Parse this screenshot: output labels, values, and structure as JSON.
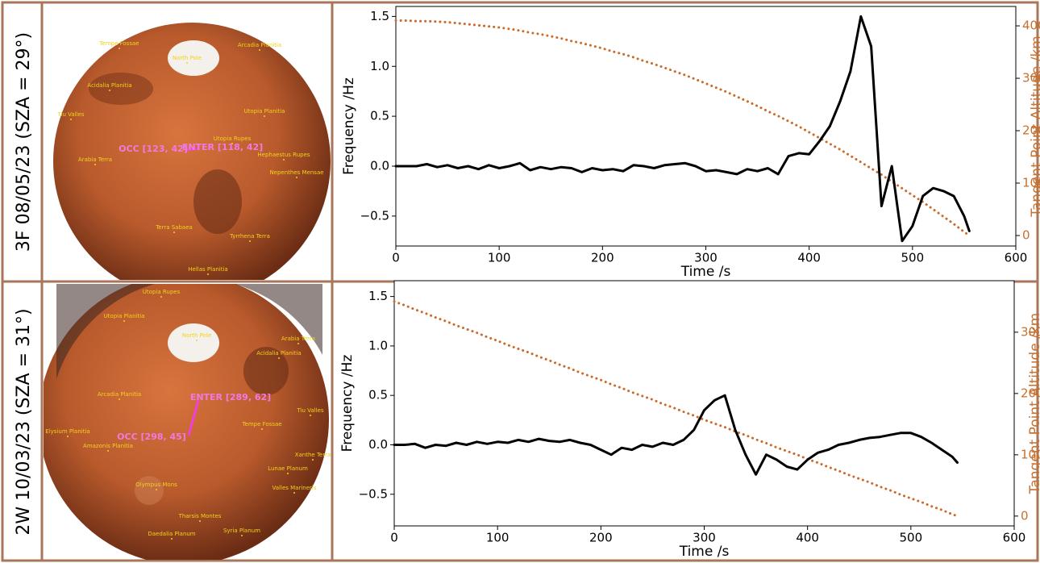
{
  "rows": [
    {
      "label": "3F 08/05/23 (SZA = 29°)",
      "features": [
        "Tempe Fossae",
        "Arcadia Planitia",
        "North Pole",
        "Acidalia Planitia",
        "Utopia Planitia",
        "Tiu Valles",
        "Utopia Rupes",
        "Hephaestus Rupes",
        "Arabia Terra",
        "Nepenthes Mensae",
        "Terra Sabaea",
        "Tyrrhena Terra",
        "Hellas Planitia"
      ],
      "occ": "OCC [123, 42]",
      "enter": "ENTER [118, 42]"
    },
    {
      "label": "2W 10/03/23 (SZA = 31°)",
      "features": [
        "Utopia Rupes",
        "Utopia Planitia",
        "North Pole",
        "Arabia Terra",
        "Acidalia Planitia",
        "Arcadia Planitia",
        "Elysium Planitia",
        "Tiu Valles",
        "Tempe Fossae",
        "Xanthe Terra",
        "Amazonis Planitia",
        "Lunae Planum",
        "Olympus Mons",
        "Valles Marineris",
        "Tharsis Montes",
        "Daedalia Planum",
        "Syria Planum"
      ],
      "occ": "OCC [298, 45]",
      "enter": "ENTER [289, 62]"
    }
  ],
  "chart_data": [
    {
      "type": "line",
      "xlabel": "Time /s",
      "ylabel": "Frequency /Hz",
      "y2label": "Tangent Point Altitude /km",
      "xlim": [
        0,
        600
      ],
      "xticks": [
        0,
        100,
        200,
        300,
        400,
        500,
        600
      ],
      "ylim": [
        -0.8,
        1.6
      ],
      "yticks": [
        {
          "value": -0.5,
          "label": "−0.5"
        },
        {
          "value": 0,
          "label": "0.0"
        },
        0.5,
        {
          "value": 1,
          "label": "1.0"
        },
        1.5
      ],
      "y2lim": [
        -20,
        437
      ],
      "y2ticks": [
        0,
        100,
        200,
        300,
        400
      ],
      "x": [
        0,
        10,
        20,
        30,
        40,
        50,
        60,
        70,
        80,
        90,
        100,
        110,
        120,
        130,
        140,
        150,
        160,
        170,
        180,
        190,
        200,
        210,
        220,
        230,
        240,
        250,
        260,
        270,
        280,
        290,
        300,
        310,
        320,
        330,
        340,
        350,
        360,
        370,
        380,
        390,
        400,
        410,
        420,
        430,
        440,
        450,
        460,
        470,
        480,
        490,
        500,
        510,
        520,
        530,
        540,
        550,
        555
      ],
      "series": [
        {
          "color": "#000000",
          "linestyle": "solid",
          "values": [
            0,
            0,
            0,
            0.02,
            -0.01,
            0.01,
            -0.02,
            0,
            -0.03,
            0.01,
            -0.02,
            0,
            0.03,
            -0.04,
            -0.01,
            -0.03,
            -0.01,
            -0.02,
            -0.06,
            -0.02,
            -0.04,
            -0.03,
            -0.05,
            0.01,
            0,
            -0.02,
            0.01,
            0.02,
            0.03,
            0,
            -0.05,
            -0.04,
            -0.06,
            -0.08,
            -0.03,
            -0.05,
            -0.02,
            -0.08,
            0.1,
            0.13,
            0.12,
            0.25,
            0.4,
            0.65,
            0.95,
            1.5,
            1.2,
            -0.4,
            0,
            -0.75,
            -0.6,
            -0.3,
            -0.22,
            -0.25,
            -0.3,
            -0.5,
            -0.65
          ]
        },
        {
          "color": "#cc6a2a",
          "linestyle": "dotted",
          "axis": "y2",
          "values": [
            410,
            410,
            409,
            409,
            408,
            407,
            405,
            403,
            401,
            399,
            397,
            394,
            391,
            387,
            384,
            380,
            376,
            371,
            367,
            362,
            357,
            351,
            346,
            340,
            333,
            327,
            320,
            313,
            306,
            298,
            290,
            282,
            274,
            265,
            256,
            247,
            237,
            228,
            218,
            208,
            197,
            186,
            175,
            164,
            152,
            140,
            128,
            116,
            103,
            90,
            77,
            64,
            50,
            36,
            22,
            7,
            0
          ]
        }
      ]
    },
    {
      "type": "line",
      "xlabel": "Time /s",
      "ylabel": "Frequency /Hz",
      "y2label": "Tangent Point Altitude /km",
      "xlim": [
        0,
        600
      ],
      "xticks": [
        0,
        100,
        200,
        300,
        400,
        500,
        600
      ],
      "ylim": [
        -0.82,
        1.66
      ],
      "yticks": [
        {
          "value": -0.5,
          "label": "−0.5"
        },
        {
          "value": 0,
          "label": "0.0"
        },
        0.5,
        {
          "value": 1,
          "label": "1.0"
        },
        1.5
      ],
      "y2lim": [
        -16,
        384
      ],
      "y2ticks": [
        0,
        100,
        200,
        300
      ],
      "x": [
        0,
        10,
        20,
        30,
        40,
        50,
        60,
        70,
        80,
        90,
        100,
        110,
        120,
        130,
        140,
        150,
        160,
        170,
        180,
        190,
        200,
        210,
        220,
        230,
        240,
        250,
        260,
        270,
        280,
        290,
        300,
        310,
        320,
        330,
        340,
        350,
        360,
        370,
        380,
        390,
        400,
        410,
        420,
        430,
        440,
        450,
        460,
        470,
        480,
        490,
        500,
        510,
        520,
        530,
        540,
        545
      ],
      "series": [
        {
          "color": "#000000",
          "linestyle": "solid",
          "values": [
            0,
            0,
            0.01,
            -0.03,
            0,
            -0.01,
            0.02,
            0,
            0.03,
            0.01,
            0.03,
            0.02,
            0.05,
            0.03,
            0.06,
            0.04,
            0.03,
            0.05,
            0.02,
            0,
            -0.05,
            -0.1,
            -0.03,
            -0.05,
            0,
            -0.02,
            0.02,
            0,
            0.05,
            0.15,
            0.35,
            0.45,
            0.5,
            0.15,
            -0.1,
            -0.3,
            -0.1,
            -0.15,
            -0.22,
            -0.25,
            -0.15,
            -0.08,
            -0.05,
            0,
            0.02,
            0.05,
            0.07,
            0.08,
            0.1,
            0.12,
            0.12,
            0.08,
            0.02,
            -0.05,
            -0.12,
            -0.18
          ]
        },
        {
          "color": "#cc6a2a",
          "linestyle": "dotted",
          "axis": "y2",
          "values": [
            350,
            344,
            337,
            331,
            324,
            318,
            311,
            305,
            299,
            292,
            286,
            279,
            273,
            267,
            260,
            254,
            247,
            241,
            234,
            228,
            222,
            215,
            209,
            202,
            196,
            190,
            183,
            177,
            170,
            164,
            157,
            151,
            145,
            138,
            132,
            125,
            119,
            112,
            106,
            100,
            93,
            87,
            80,
            74,
            67,
            61,
            55,
            48,
            42,
            35,
            29,
            23,
            16,
            10,
            3,
            0
          ]
        }
      ]
    }
  ]
}
